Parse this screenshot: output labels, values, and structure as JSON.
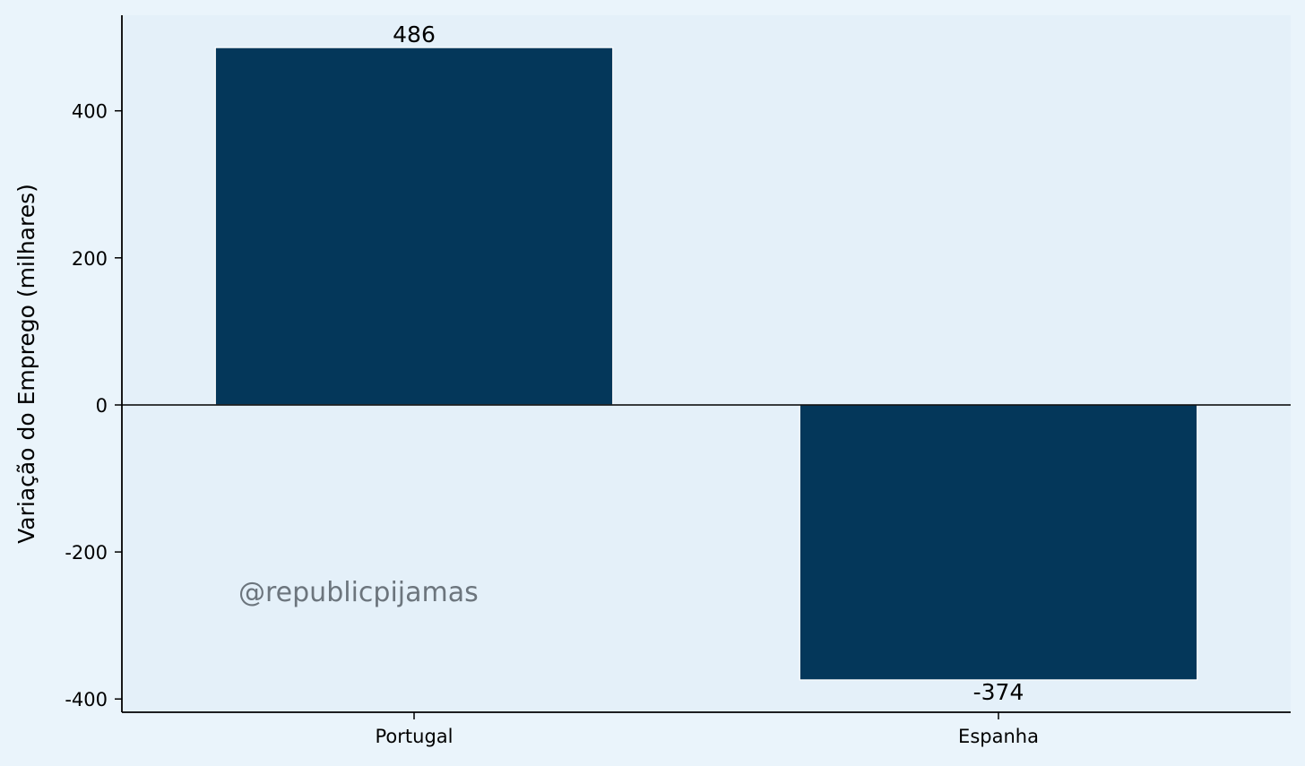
{
  "colors": {
    "figure_background": "#eaf4fb",
    "plot_background": "#e4f0f9",
    "bar": "#04375a",
    "bar_edge": "#ffffff",
    "axis": "#000000",
    "watermark": "#6c757d"
  },
  "chart_data": {
    "type": "bar",
    "categories": [
      "Portugal",
      "Espanha"
    ],
    "values": [
      486,
      -374
    ],
    "value_labels": [
      "486",
      "-374"
    ],
    "title": "",
    "xlabel": "",
    "ylabel": "Variação do Emprego (milhares)",
    "ylim": [
      -418,
      530
    ],
    "yticks": [
      -400,
      -200,
      0,
      200,
      400
    ],
    "ytick_labels": [
      "-400",
      "-200",
      "0",
      "200",
      "400"
    ],
    "zero_line": true,
    "grid": false,
    "legend": "none",
    "watermark": "@republicpijamas"
  }
}
